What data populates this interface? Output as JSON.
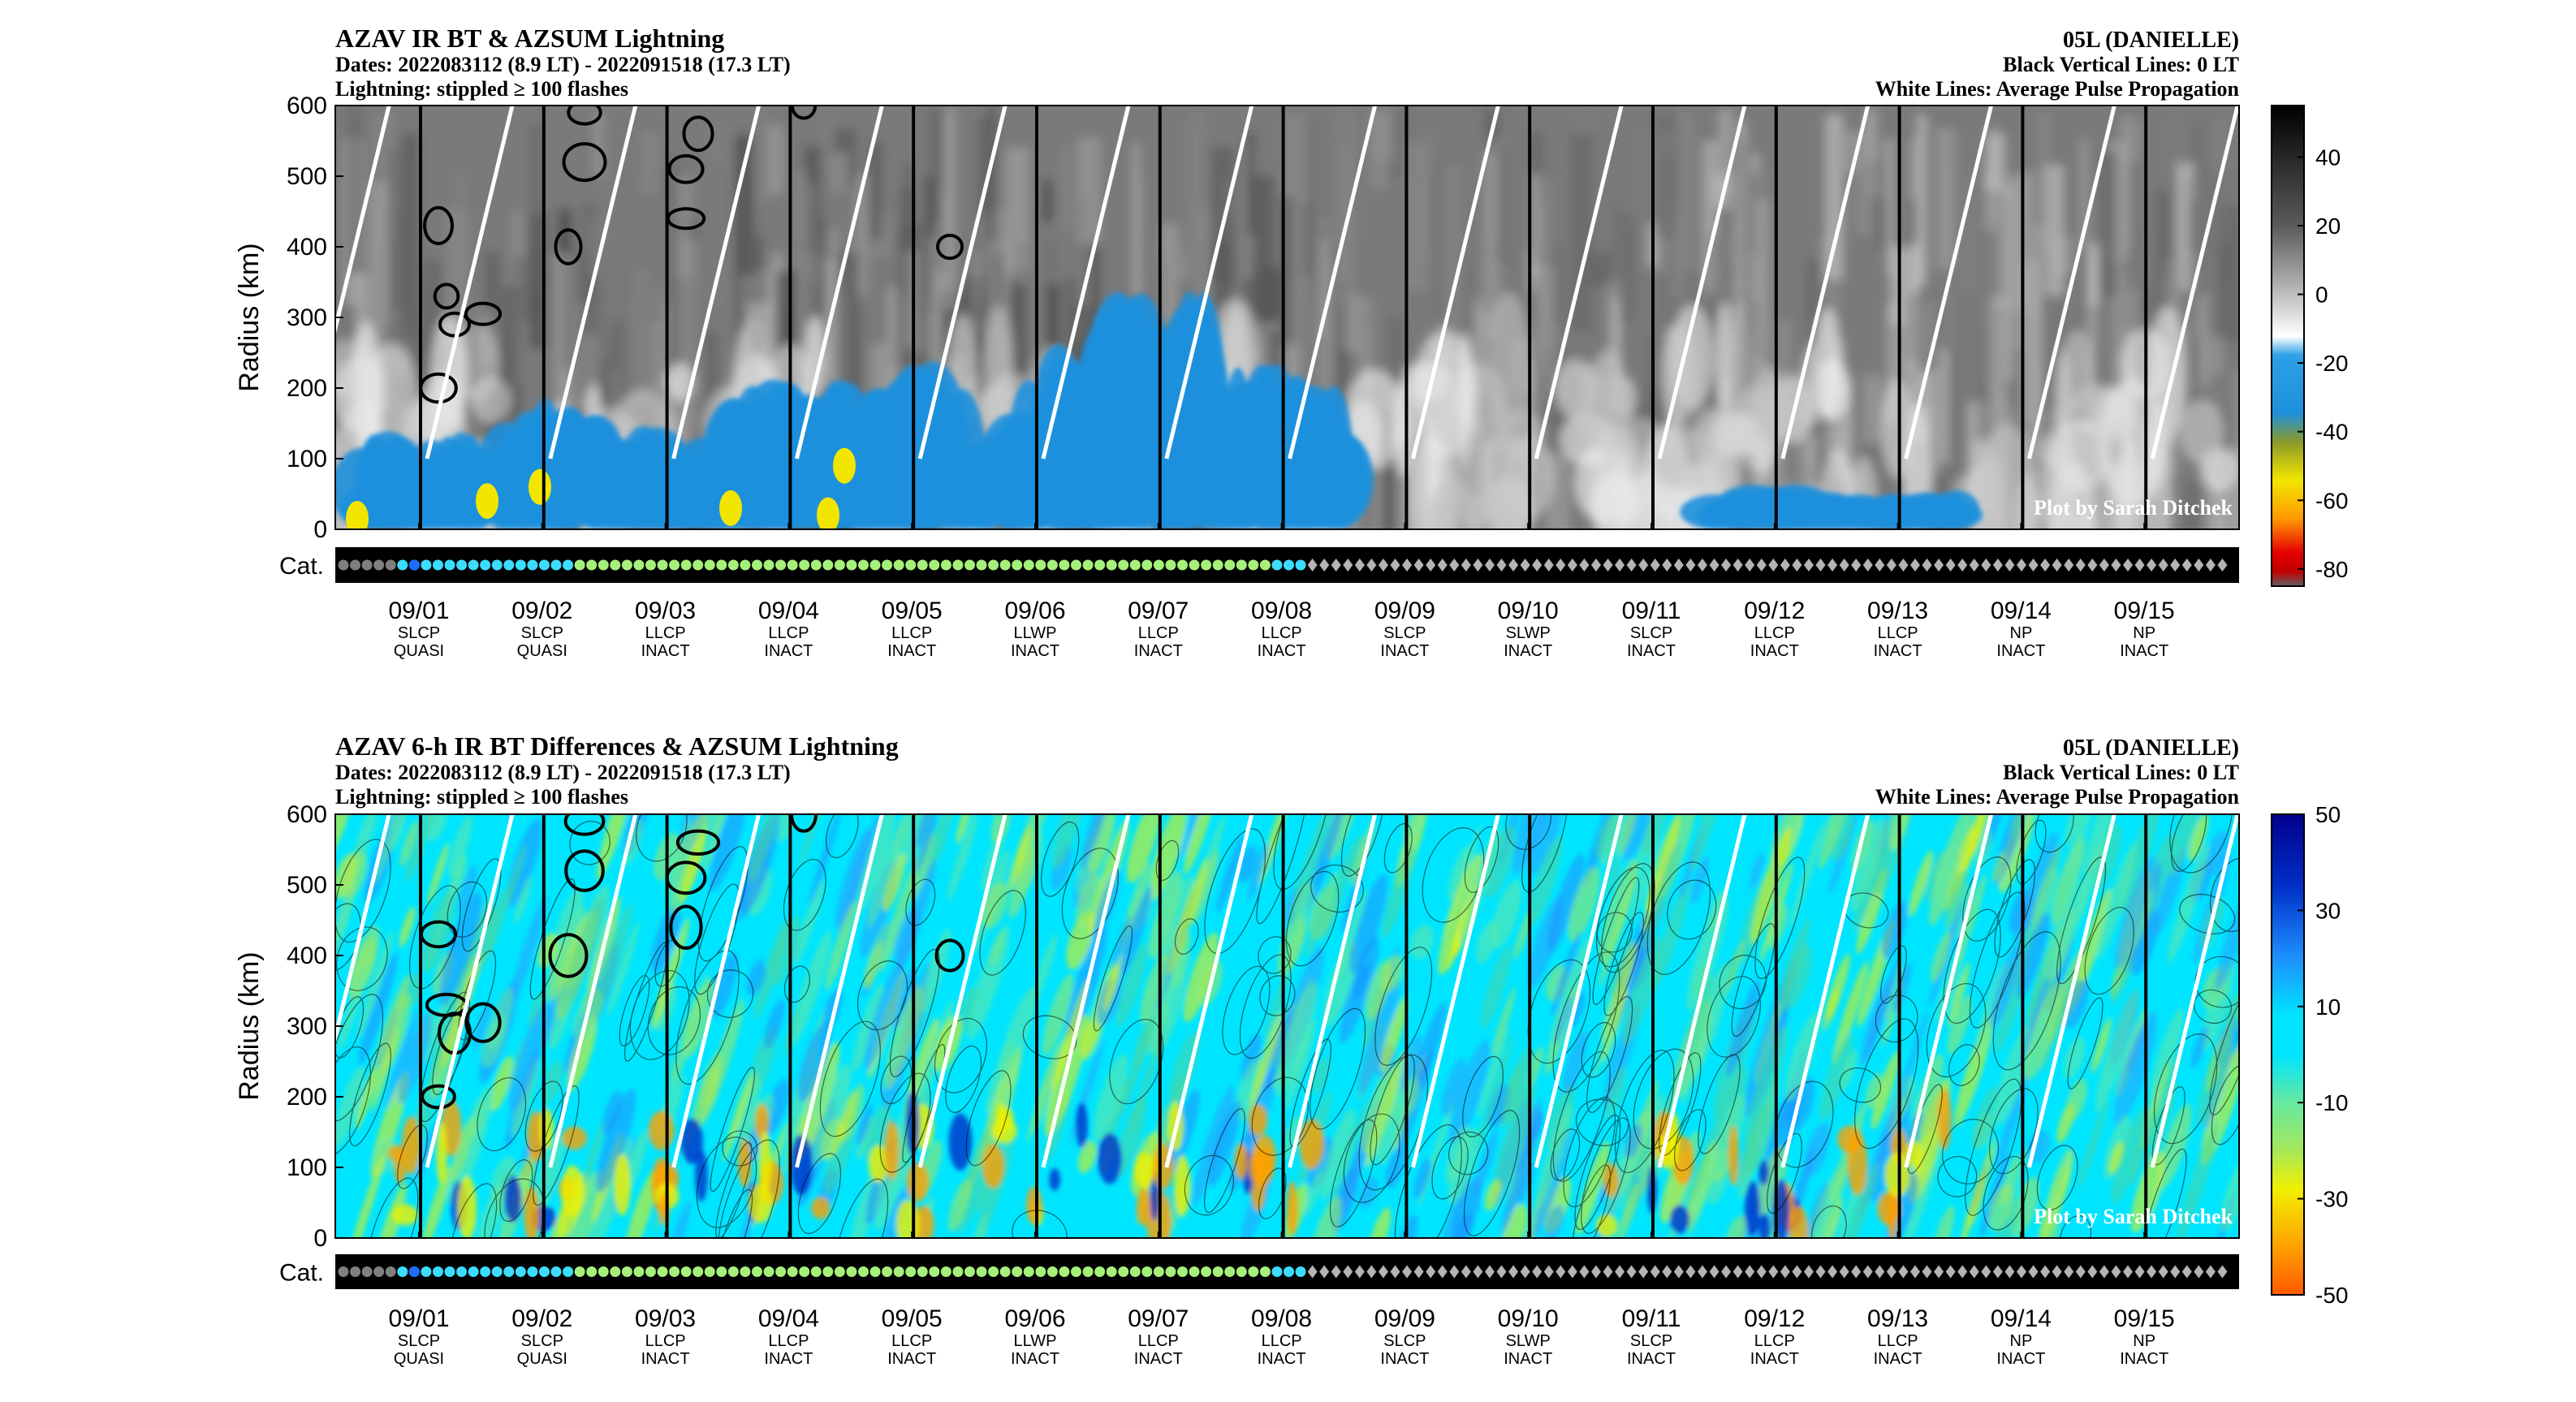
{
  "panels": [
    {
      "title": "AZAV IR BT & AZSUM Lightning",
      "dates": "Dates: 2022083112 (8.9 LT) - 2022091518 (17.3 LT)",
      "lightning": "Lightning: stippled ≥ 100 flashes",
      "storm": "05L (DANIELLE)",
      "vlines": "Black Vertical Lines: 0 LT",
      "wlines": "White Lines: Average Pulse Propagation",
      "credit": "Plot by Sarah Ditchek",
      "ylabel": "Radius (km)",
      "cat_label": "Cat.",
      "yticks": [
        "0",
        "100",
        "200",
        "300",
        "400",
        "500",
        "600"
      ],
      "cbar_ticks": [
        "40",
        "20",
        "0",
        "-20",
        "-40",
        "-60",
        "-80"
      ]
    },
    {
      "title": "AZAV 6-h IR BT Differences & AZSUM Lightning",
      "dates": "Dates: 2022083112 (8.9 LT) - 2022091518 (17.3 LT)",
      "lightning": "Lightning: stippled ≥ 100 flashes",
      "storm": "05L (DANIELLE)",
      "vlines": "Black Vertical Lines: 0 LT",
      "wlines": "White Lines: Average Pulse Propagation",
      "credit": "Plot by Sarah Ditchek",
      "ylabel": "Radius (km)",
      "cat_label": "Cat.",
      "yticks": [
        "0",
        "100",
        "200",
        "300",
        "400",
        "500",
        "600"
      ],
      "cbar_ticks": [
        "50",
        "30",
        "10",
        "-10",
        "-30",
        "-50"
      ]
    }
  ],
  "days": [
    {
      "date": "09/01",
      "l1": "SLCP",
      "l2": "QUASI"
    },
    {
      "date": "09/02",
      "l1": "SLCP",
      "l2": "QUASI"
    },
    {
      "date": "09/03",
      "l1": "LLCP",
      "l2": "INACT"
    },
    {
      "date": "09/04",
      "l1": "LLCP",
      "l2": "INACT"
    },
    {
      "date": "09/05",
      "l1": "LLCP",
      "l2": "INACT"
    },
    {
      "date": "09/06",
      "l1": "LLWP",
      "l2": "INACT"
    },
    {
      "date": "09/07",
      "l1": "LLCP",
      "l2": "INACT"
    },
    {
      "date": "09/08",
      "l1": "LLCP",
      "l2": "INACT"
    },
    {
      "date": "09/09",
      "l1": "SLCP",
      "l2": "INACT"
    },
    {
      "date": "09/10",
      "l1": "SLWP",
      "l2": "INACT"
    },
    {
      "date": "09/11",
      "l1": "SLCP",
      "l2": "INACT"
    },
    {
      "date": "09/12",
      "l1": "LLCP",
      "l2": "INACT"
    },
    {
      "date": "09/13",
      "l1": "LLCP",
      "l2": "INACT"
    },
    {
      "date": "09/14",
      "l1": "NP",
      "l2": "INACT"
    },
    {
      "date": "09/15",
      "l1": "NP",
      "l2": "INACT"
    }
  ],
  "chart_data": [
    {
      "type": "heatmap",
      "title": "AZAV IR BT & AZSUM Lightning",
      "ylabel": "Radius (km)",
      "ylim": [
        0,
        600
      ],
      "x": [
        "09/01",
        "09/02",
        "09/03",
        "09/04",
        "09/05",
        "09/06",
        "09/07",
        "09/08",
        "09/09",
        "09/10",
        "09/11",
        "09/12",
        "09/13",
        "09/14",
        "09/15"
      ],
      "colorbar_range": [
        -80,
        50
      ],
      "colorbar_ticks": [
        40,
        20,
        0,
        -20,
        -40,
        -60,
        -80
      ],
      "colors": {
        "warm": "#1a1a1a",
        "neutral": "#ffffff",
        "cold": "#1e90dc",
        "colder": "#f2e600",
        "coldest": "#e60000"
      },
      "cold_cloud_top_max_radius_km": [
        130,
        170,
        140,
        200,
        220,
        240,
        330,
        220,
        0,
        0,
        0,
        60,
        50,
        0,
        0
      ]
    },
    {
      "type": "heatmap",
      "title": "AZAV 6-h IR BT Differences & AZSUM Lightning",
      "ylabel": "Radius (km)",
      "ylim": [
        0,
        600
      ],
      "x": [
        "09/01",
        "09/02",
        "09/03",
        "09/04",
        "09/05",
        "09/06",
        "09/07",
        "09/08",
        "09/09",
        "09/10",
        "09/11",
        "09/12",
        "09/13",
        "09/14",
        "09/15"
      ],
      "colorbar_range": [
        -50,
        50
      ],
      "colorbar_ticks": [
        50,
        30,
        10,
        -10,
        -30,
        -50
      ],
      "colors": {
        "cooling": "#ff6a00",
        "neutral": "#00e5ff",
        "warming": "#00008c"
      }
    }
  ],
  "category_sequence": [
    "TD",
    "TD",
    "TD",
    "TD",
    "TD",
    "TS",
    "TS",
    "TS",
    "TS",
    "TS",
    "TS",
    "TS",
    "TS",
    "TS",
    "TS",
    "TS",
    "TS",
    "TS",
    "TS",
    "TS",
    "H1",
    "H1",
    "H1",
    "H1",
    "H1",
    "H1",
    "H1",
    "H1",
    "H1",
    "H1",
    "H1",
    "H1",
    "H1",
    "H1",
    "H1",
    "H1",
    "H1",
    "H1",
    "H1",
    "H1",
    "H1",
    "H1",
    "H1",
    "H1",
    "H1",
    "H1",
    "H1",
    "H1",
    "H1",
    "H1",
    "H1",
    "H1",
    "H1",
    "H1",
    "H1",
    "H1",
    "H1",
    "H1",
    "H1",
    "H1",
    "H1",
    "H1",
    "H1",
    "H1",
    "H1",
    "H1",
    "H1",
    "H1",
    "H1",
    "H1",
    "H1",
    "H1",
    "H1",
    "H1",
    "H1",
    "H1",
    "H1",
    "H1",
    "H1",
    "TS",
    "TS",
    "TS",
    "EX",
    "EX",
    "EX",
    "EX",
    "EX",
    "EX",
    "EX",
    "EX",
    "EX",
    "EX",
    "EX",
    "EX",
    "EX",
    "EX",
    "EX",
    "EX",
    "EX",
    "EX",
    "EX",
    "EX",
    "EX",
    "EX",
    "EX",
    "EX",
    "EX",
    "EX",
    "EX",
    "EX",
    "EX",
    "EX",
    "EX",
    "EX",
    "EX",
    "EX",
    "EX",
    "EX",
    "EX",
    "EX",
    "EX",
    "EX",
    "EX",
    "EX",
    "EX",
    "EX",
    "EX",
    "EX",
    "EX",
    "EX",
    "EX",
    "EX",
    "EX",
    "EX",
    "EX",
    "EX",
    "EX",
    "EX",
    "EX",
    "EX",
    "EX",
    "EX",
    "EX",
    "EX",
    "EX",
    "EX",
    "EX",
    "EX",
    "EX",
    "EX",
    "EX",
    "EX",
    "EX",
    "EX",
    "EX",
    "EX",
    "EX",
    "EX",
    "EX",
    "EX"
  ],
  "category_colors": {
    "TD": "#7f7f7f",
    "TS": "#3cdcff",
    "H1": "#a6f07a",
    "EX": "#b4b4b4"
  }
}
